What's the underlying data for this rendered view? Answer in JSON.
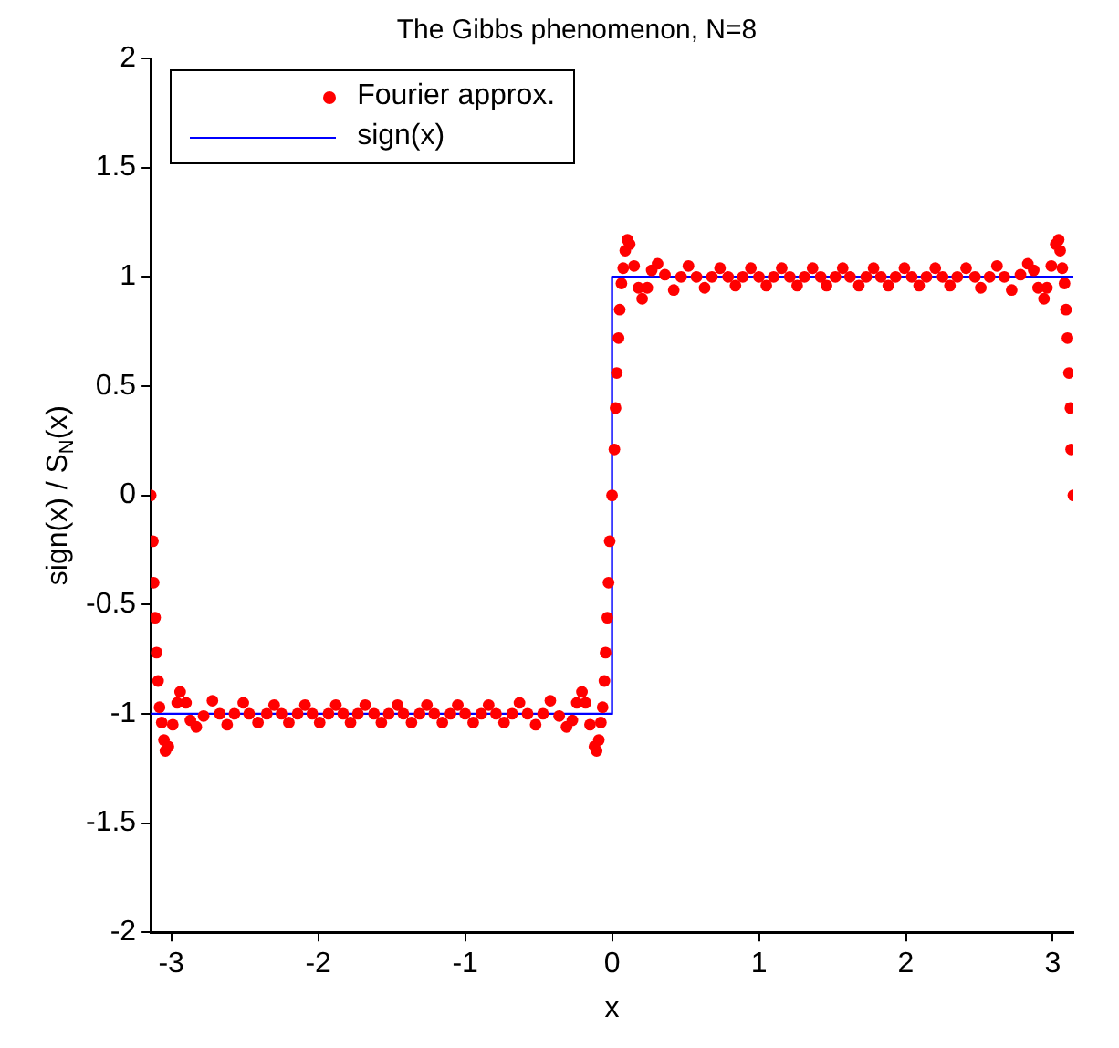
{
  "chart_data": {
    "type": "scatter",
    "title": "The Gibbs phenomenon, N=8",
    "xlabel": "x",
    "ylabel": "sign(x) / S$_{N}$(x)",
    "xlim": [
      -3.14,
      3.14
    ],
    "xticks": [
      -3,
      -2,
      -1,
      0,
      1,
      2,
      3
    ],
    "ylim": [
      -2,
      2
    ],
    "yticks": [
      -2,
      -1.5,
      -1,
      -0.5,
      0,
      0.5,
      1,
      1.5,
      2
    ],
    "grid": false,
    "legend": "top left",
    "series": [
      {
        "name": "Fourier approx.",
        "marker": "circle",
        "color": "#ff0000",
        "x": [
          -3.14,
          -3.125,
          -3.12,
          -3.11,
          -3.1,
          -3.09,
          -3.08,
          -3.065,
          -3.05,
          -3.04,
          -3.02,
          -2.99,
          -2.96,
          -2.94,
          -2.9,
          -2.87,
          -2.83,
          -2.78,
          -2.72,
          -2.67,
          -2.62,
          -2.57,
          -2.51,
          -2.47,
          -2.41,
          -2.35,
          -2.3,
          -2.25,
          -2.2,
          -2.14,
          -2.09,
          -2.04,
          -1.99,
          -1.93,
          -1.88,
          -1.83,
          -1.78,
          -1.73,
          -1.68,
          -1.62,
          -1.57,
          -1.52,
          -1.46,
          -1.42,
          -1.365,
          -1.31,
          -1.26,
          -1.21,
          -1.155,
          -1.1,
          -1.05,
          -1.0,
          -0.945,
          -0.89,
          -0.84,
          -0.79,
          -0.735,
          -0.68,
          -0.63,
          -0.575,
          -0.52,
          -0.47,
          -0.42,
          -0.36,
          -0.31,
          -0.27,
          -0.24,
          -0.205,
          -0.18,
          -0.15,
          -0.12,
          -0.105,
          -0.09,
          -0.076,
          -0.064,
          -0.052,
          -0.044,
          -0.032,
          -0.024,
          -0.016,
          0,
          0.016,
          0.024,
          0.032,
          0.044,
          0.052,
          0.064,
          0.076,
          0.09,
          0.105,
          0.12,
          0.15,
          0.18,
          0.205,
          0.24,
          0.27,
          0.31,
          0.36,
          0.42,
          0.47,
          0.52,
          0.575,
          0.63,
          0.68,
          0.735,
          0.79,
          0.84,
          0.89,
          0.945,
          1.0,
          1.05,
          1.1,
          1.155,
          1.21,
          1.26,
          1.31,
          1.365,
          1.42,
          1.46,
          1.52,
          1.57,
          1.62,
          1.68,
          1.73,
          1.78,
          1.83,
          1.88,
          1.93,
          1.99,
          2.04,
          2.09,
          2.14,
          2.2,
          2.25,
          2.3,
          2.35,
          2.41,
          2.47,
          2.51,
          2.57,
          2.62,
          2.67,
          2.72,
          2.78,
          2.83,
          2.87,
          2.9,
          2.94,
          2.96,
          2.99,
          3.02,
          3.04,
          3.05,
          3.065,
          3.08,
          3.09,
          3.1,
          3.11,
          3.12,
          3.125,
          3.14
        ],
        "values": [
          0,
          -0.21,
          -0.4,
          -0.56,
          -0.72,
          -0.85,
          -0.97,
          -1.04,
          -1.12,
          -1.17,
          -1.15,
          -1.05,
          -0.95,
          -0.9,
          -0.95,
          -1.03,
          -1.06,
          -1.01,
          -0.94,
          -1.0,
          -1.05,
          -1.0,
          -0.95,
          -1.0,
          -1.04,
          -1.0,
          -0.96,
          -1.0,
          -1.04,
          -1.0,
          -0.96,
          -1.0,
          -1.04,
          -1.0,
          -0.96,
          -1.0,
          -1.04,
          -1.0,
          -0.96,
          -1.0,
          -1.04,
          -1.0,
          -0.96,
          -1.0,
          -1.04,
          -1.0,
          -0.96,
          -1.0,
          -1.04,
          -1.0,
          -0.96,
          -1.0,
          -1.04,
          -1.0,
          -0.96,
          -1.0,
          -1.04,
          -1.0,
          -0.95,
          -1.0,
          -1.05,
          -1.0,
          -0.94,
          -1.01,
          -1.06,
          -1.03,
          -0.95,
          -0.9,
          -0.95,
          -1.05,
          -1.15,
          -1.17,
          -1.12,
          -1.04,
          -0.97,
          -0.85,
          -0.72,
          -0.56,
          -0.4,
          -0.21,
          0,
          0.21,
          0.4,
          0.56,
          0.72,
          0.85,
          0.97,
          1.04,
          1.12,
          1.17,
          1.15,
          1.05,
          0.95,
          0.9,
          0.95,
          1.03,
          1.06,
          1.01,
          0.94,
          1.0,
          1.05,
          1.0,
          0.95,
          1.0,
          1.04,
          1.0,
          0.96,
          1.0,
          1.04,
          1.0,
          0.96,
          1.0,
          1.04,
          1.0,
          0.96,
          1.0,
          1.04,
          1.0,
          0.96,
          1.0,
          1.04,
          1.0,
          0.96,
          1.0,
          1.04,
          1.0,
          0.96,
          1.0,
          1.04,
          1.0,
          0.96,
          1.0,
          1.04,
          1.0,
          0.96,
          1.0,
          1.04,
          1.0,
          0.95,
          1.0,
          1.05,
          1.0,
          0.94,
          1.01,
          1.06,
          1.03,
          0.95,
          0.9,
          0.95,
          1.05,
          1.15,
          1.17,
          1.12,
          1.04,
          0.97,
          0.85,
          0.72,
          0.56,
          0.4,
          0.21,
          0
        ]
      },
      {
        "name": "sign(x)",
        "type": "line",
        "line_style": "solid",
        "marker": "none",
        "color": "#0000ff",
        "x": [
          -3.14,
          0,
          0,
          3.14
        ],
        "values": [
          -1,
          -1,
          1,
          1
        ]
      }
    ]
  }
}
